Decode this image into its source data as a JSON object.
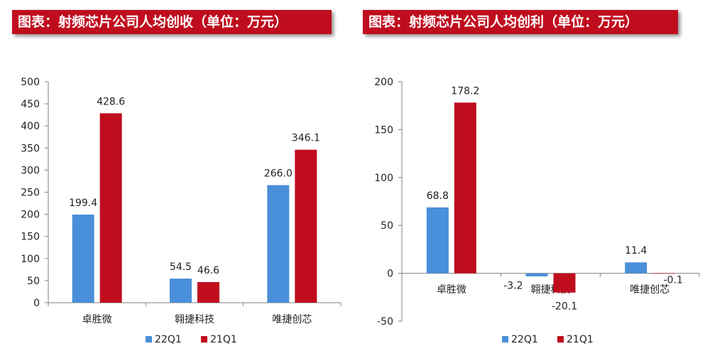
{
  "colors": {
    "series_22Q1": "#4a8fd9",
    "series_21Q1": "#c00d1e",
    "banner": "#c00d1e"
  },
  "chart_data": [
    {
      "type": "bar",
      "title": "图表：射频芯片公司人均创收（单位：万元）",
      "categories": [
        "卓胜微",
        "翱捷科技",
        "唯捷创芯"
      ],
      "series": [
        {
          "name": "22Q1",
          "values": [
            199.4,
            54.5,
            266.0
          ],
          "labels": [
            "199.4",
            "54.5",
            "266.0"
          ]
        },
        {
          "name": "21Q1",
          "values": [
            428.6,
            46.6,
            346.1
          ],
          "labels": [
            "428.6",
            "46.6",
            "346.1"
          ]
        }
      ],
      "ylim": [
        0,
        500
      ],
      "yticks": [
        0,
        50,
        100,
        150,
        200,
        250,
        300,
        350,
        400,
        450,
        500
      ],
      "legend": "bottom",
      "grid": false
    },
    {
      "type": "bar",
      "title": "图表：射频芯片公司人均创利（单位：万元）",
      "categories": [
        "卓胜微",
        "翱捷科技",
        "唯捷创芯"
      ],
      "series": [
        {
          "name": "22Q1",
          "values": [
            68.8,
            -3.2,
            11.4
          ],
          "labels": [
            "68.8",
            "-3.2",
            "11.4"
          ]
        },
        {
          "name": "21Q1",
          "values": [
            178.2,
            -20.1,
            -0.1
          ],
          "labels": [
            "178.2",
            "-20.1",
            "-0.1"
          ]
        }
      ],
      "ylim": [
        -50,
        200
      ],
      "yticks": [
        -50,
        0,
        50,
        100,
        150,
        200
      ],
      "legend": "bottom",
      "grid": false
    }
  ]
}
